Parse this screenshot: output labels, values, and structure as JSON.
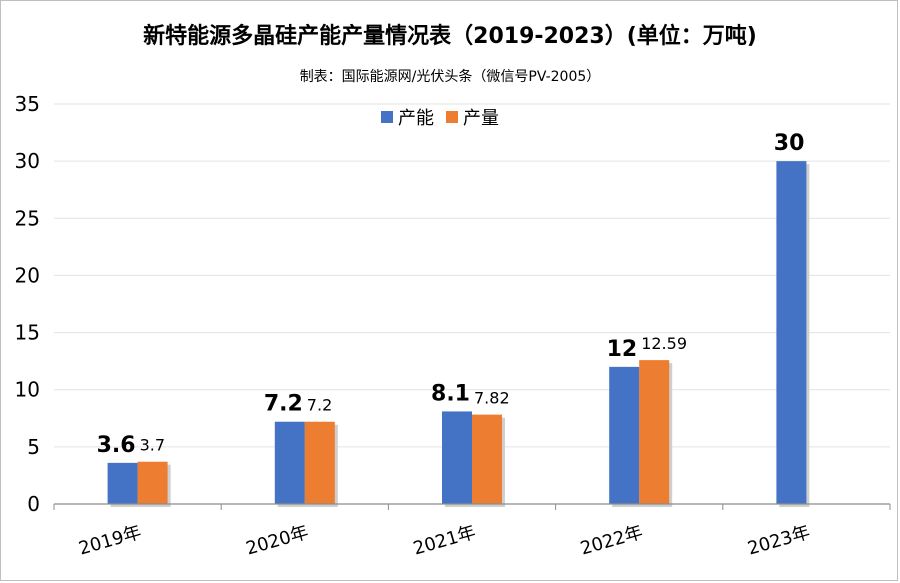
{
  "chart_data": {
    "type": "bar",
    "title": "新特能源多晶硅产能产量情况表（2019-2023）(单位：万吨)",
    "subtitle": "制表：国际能源网/光伏头条（微信号PV-2005）",
    "categories": [
      "2019年",
      "2020年",
      "2021年",
      "2022年",
      "2023年"
    ],
    "series": [
      {
        "name": "产能",
        "values": [
          3.6,
          7.2,
          8.1,
          12,
          30
        ],
        "labels": [
          "3.6",
          "7.2",
          "8.1",
          "12",
          "30"
        ],
        "color": "#4472C4"
      },
      {
        "name": "产量",
        "values": [
          3.7,
          7.2,
          7.82,
          12.59,
          null
        ],
        "labels": [
          "3.7",
          "7.2",
          "7.82",
          "12.59",
          ""
        ],
        "color": "#ED7D31"
      }
    ],
    "yticks": [
      "0",
      "5",
      "10",
      "15",
      "20",
      "25",
      "30",
      "35"
    ],
    "ylim": [
      0,
      35
    ],
    "grid": true,
    "legend_position": "top-center"
  }
}
